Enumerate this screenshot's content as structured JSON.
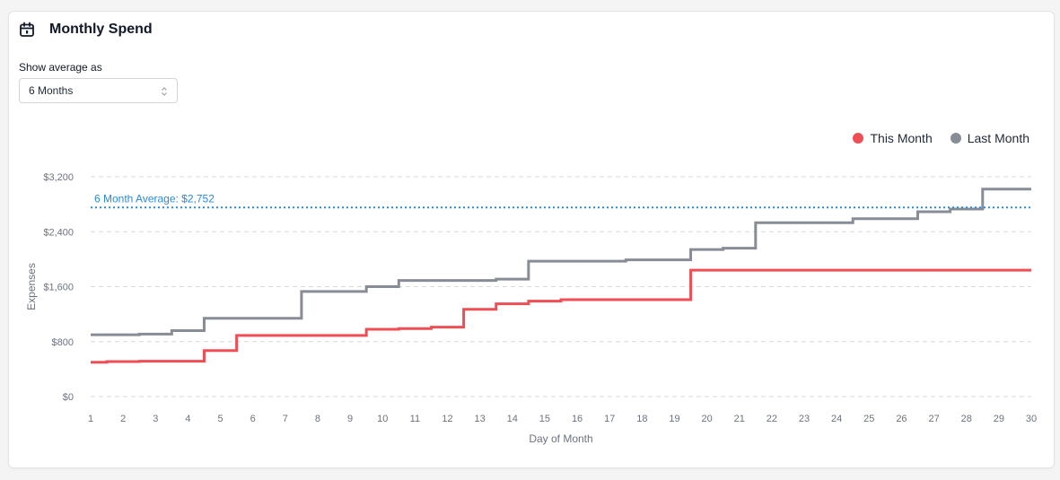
{
  "header": {
    "title": "Monthly Spend",
    "icon": "calendar-icon"
  },
  "controls": {
    "average_label": "Show average as",
    "average_selected": "6 Months"
  },
  "legend": {
    "this_month": "This Month",
    "last_month": "Last Month"
  },
  "colors": {
    "this_month": "#ef4f54",
    "last_month": "#878d96",
    "average": "#2b8ad8",
    "grid": "#d9d9d9"
  },
  "chart_data": {
    "type": "line",
    "step": true,
    "xlabel": "Day of Month",
    "ylabel": "Expenses",
    "x": [
      1,
      2,
      3,
      4,
      5,
      6,
      7,
      8,
      9,
      10,
      11,
      12,
      13,
      14,
      15,
      16,
      17,
      18,
      19,
      20,
      21,
      22,
      23,
      24,
      25,
      26,
      27,
      28,
      29,
      30
    ],
    "xlim": [
      1,
      30
    ],
    "ylim": [
      0,
      3200
    ],
    "yticks": [
      0,
      800,
      1600,
      2400,
      3200
    ],
    "ytick_labels": [
      "$0",
      "$800",
      "$1,600",
      "$2,400",
      "$3,200"
    ],
    "grid": "horizontal dashed",
    "legend_position": "top-right",
    "series": [
      {
        "name": "This Month",
        "values": [
          500,
          510,
          515,
          515,
          670,
          890,
          890,
          890,
          890,
          980,
          990,
          1010,
          1270,
          1350,
          1390,
          1410,
          1410,
          1410,
          1410,
          1840,
          1840,
          1840,
          1840,
          1840,
          1840,
          1840,
          1840,
          1840,
          1840,
          1840
        ]
      },
      {
        "name": "Last Month",
        "values": [
          900,
          900,
          910,
          960,
          1140,
          1140,
          1140,
          1530,
          1530,
          1600,
          1690,
          1690,
          1690,
          1710,
          1970,
          1970,
          1970,
          1990,
          1990,
          2140,
          2160,
          2530,
          2530,
          2530,
          2590,
          2590,
          2690,
          2730,
          3020,
          3020
        ]
      }
    ],
    "reference_line": {
      "label": "6 Month Average: $2,752",
      "value": 2752
    }
  }
}
